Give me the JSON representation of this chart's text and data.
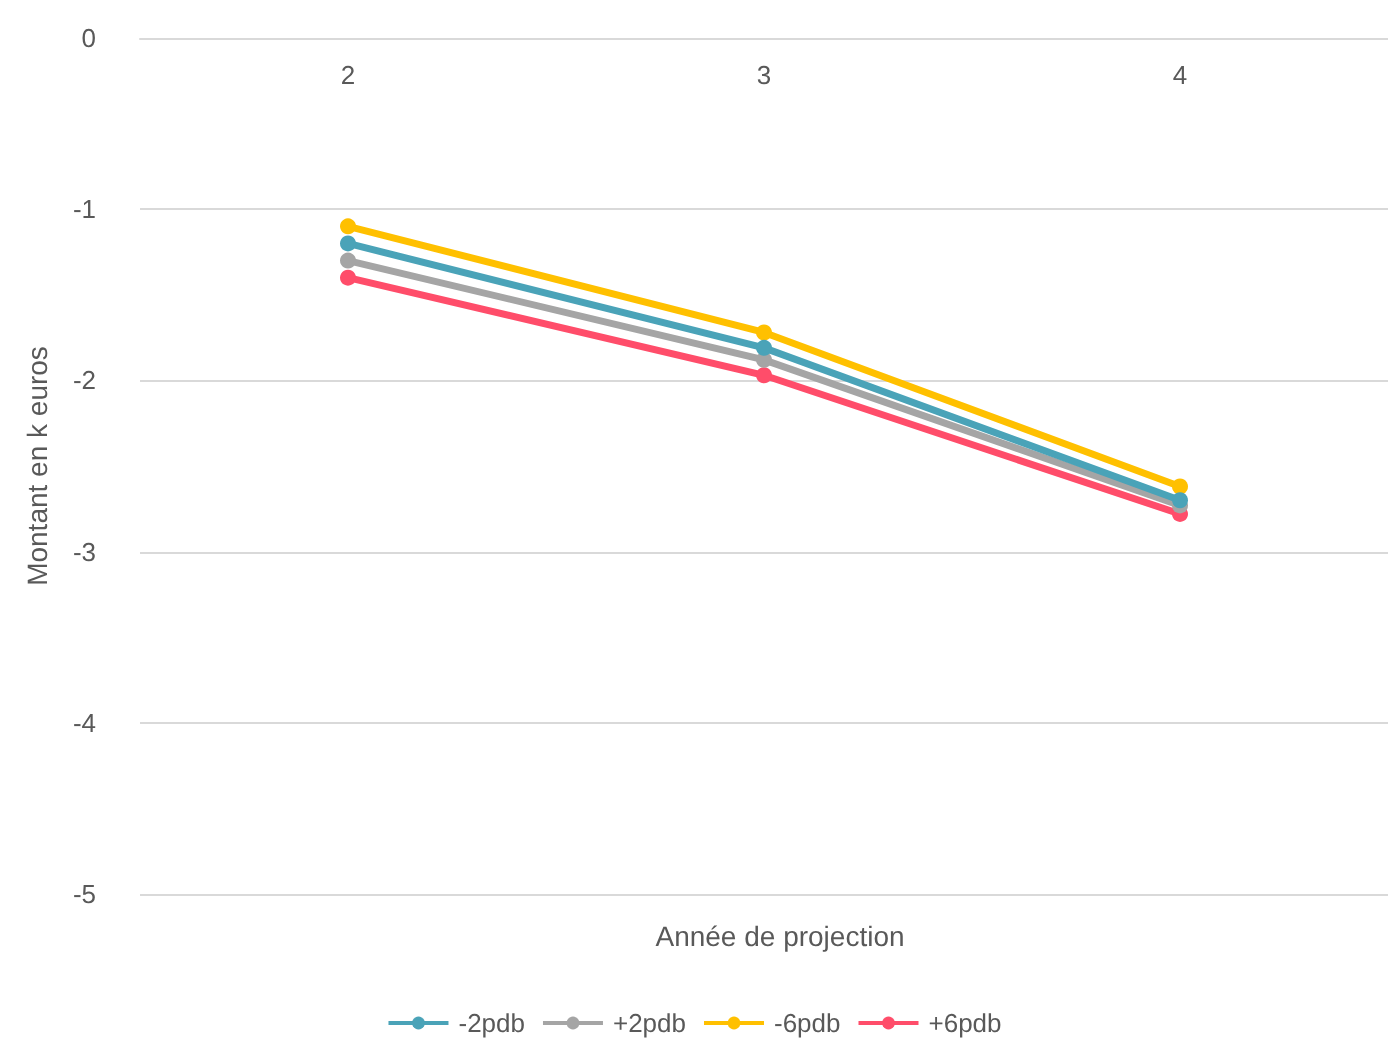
{
  "chart_data": {
    "type": "line",
    "xlabel": "Année de projection",
    "ylabel": "Montant en k euros",
    "categories": [
      "2",
      "3",
      "4"
    ],
    "series": [
      {
        "name": "-2pdb",
        "color": "#4aa3b8",
        "values": [
          -1.2,
          -1.81,
          -2.7
        ]
      },
      {
        "name": "+2pdb",
        "color": "#a5a5a5",
        "values": [
          -1.3,
          -1.88,
          -2.73
        ]
      },
      {
        "name": "-6pdb",
        "color": "#ffc000",
        "values": [
          -1.1,
          -1.72,
          -2.62
        ]
      },
      {
        "name": "+6pdb",
        "color": "#ff4d6a",
        "values": [
          -1.4,
          -1.97,
          -2.78
        ]
      }
    ],
    "ylim": [
      -5,
      0
    ],
    "yticks": [
      0,
      -1,
      -2,
      -3,
      -4,
      -5
    ],
    "grid": "y",
    "legend": "bottom",
    "marker": "circle",
    "line_style": "solid"
  }
}
